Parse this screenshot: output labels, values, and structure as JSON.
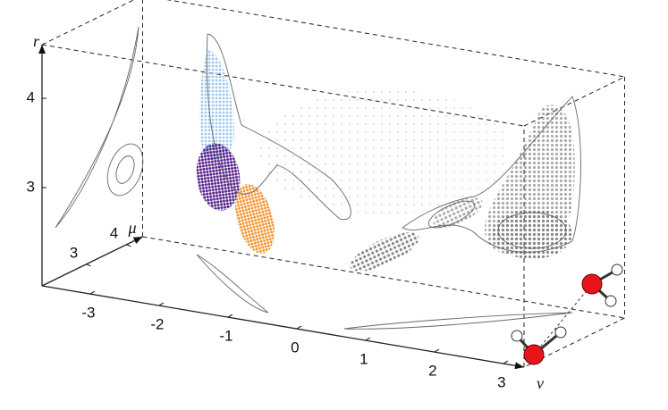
{
  "chart_data": {
    "type": "scatter3d",
    "x_label": "ν",
    "y_label": "μ",
    "z_label": "r",
    "xlim": [
      -3.7,
      3.3
    ],
    "xticks": [
      -3,
      -2,
      -1,
      0,
      1,
      2,
      3
    ],
    "ylim": [
      1.9,
      4.4
    ],
    "yticks": [
      3,
      4
    ],
    "zlim": [
      1.9,
      4.6
    ],
    "zticks": [
      3,
      4
    ]
  }
}
